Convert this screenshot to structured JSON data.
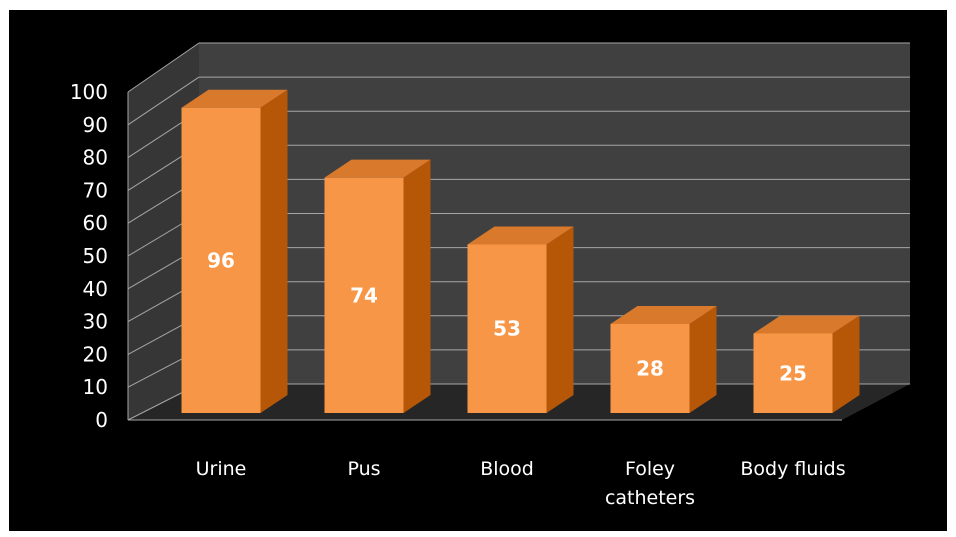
{
  "chart_data": {
    "type": "bar",
    "style": "3d-column",
    "categories": [
      "Urine",
      "Pus",
      "Blood",
      "Foley catheters",
      "Body fluids"
    ],
    "category_lines": [
      [
        "Urine"
      ],
      [
        "Pus"
      ],
      [
        "Blood"
      ],
      [
        "Foley",
        "catheters"
      ],
      [
        "Body fluids"
      ]
    ],
    "series": [
      {
        "values": [
          96,
          74,
          53,
          28,
          25
        ]
      }
    ],
    "data_labels": [
      "96",
      "74",
      "53",
      "28",
      "25"
    ],
    "y_ticks": [
      "0",
      "10",
      "20",
      "30",
      "40",
      "50",
      "60",
      "70",
      "80",
      "90",
      "100"
    ],
    "ylim": [
      0,
      100
    ],
    "grid": true,
    "legend": "none",
    "title": "",
    "xlabel": "",
    "ylabel": "",
    "colors": {
      "background": "#000000",
      "wall": "#404040",
      "floor": "#262626",
      "gridline": "#a6a6a6",
      "bar_front": "#f79646",
      "bar_side": "#b65708",
      "bar_top": "#d9792c",
      "text": "#ffffff"
    }
  }
}
